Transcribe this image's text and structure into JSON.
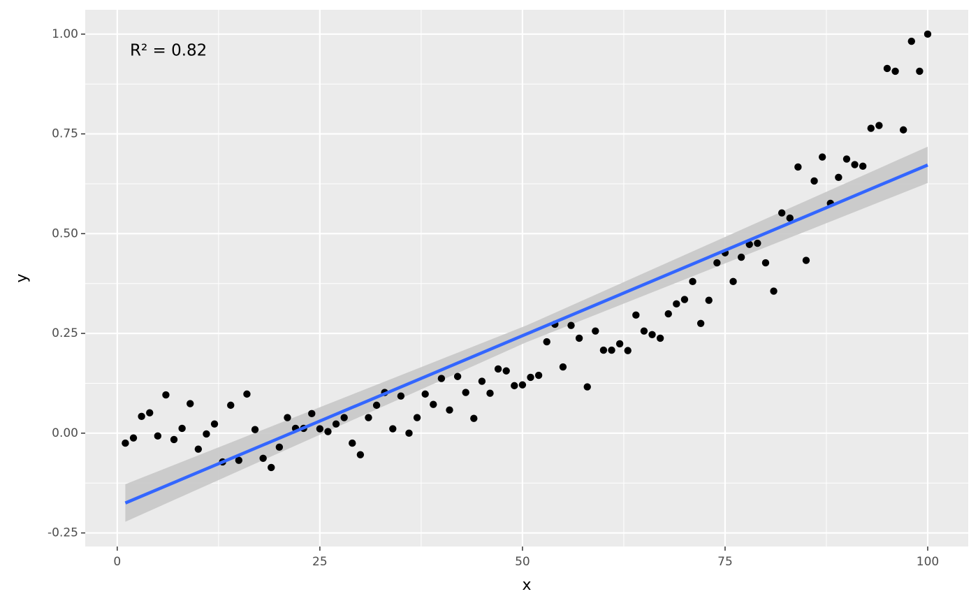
{
  "chart_data": {
    "type": "scatter",
    "x_label": "x",
    "y_label": "y",
    "annotation": "R² = 0.82",
    "xlim": [
      -3.95,
      105
    ],
    "ylim": [
      -0.284,
      1.061
    ],
    "xticks": [
      0,
      25,
      50,
      75,
      100
    ],
    "yticks": [
      -0.25,
      {
        "value": 0,
        "label": "0.00"
      },
      0.25,
      {
        "value": 0.5,
        "label": "0.50"
      },
      0.75,
      {
        "value": 1,
        "label": "1.00"
      }
    ],
    "xminor": [
      12.5,
      37.5,
      62.5,
      87.5
    ],
    "yminor": [
      -0.125,
      0.125,
      0.375,
      0.625,
      0.875
    ],
    "grid": true,
    "point_color": "#000000",
    "x": [
      1,
      2,
      3,
      4,
      5,
      6,
      7,
      8,
      9,
      10,
      11,
      12,
      13,
      14,
      15,
      16,
      17,
      18,
      19,
      20,
      21,
      22,
      23,
      24,
      25,
      26,
      27,
      28,
      29,
      30,
      31,
      32,
      33,
      34,
      35,
      36,
      37,
      38,
      39,
      40,
      41,
      42,
      43,
      44,
      45,
      46,
      47,
      48,
      49,
      50,
      51,
      52,
      53,
      54,
      55,
      56,
      57,
      58,
      59,
      60,
      61,
      62,
      63,
      64,
      65,
      66,
      67,
      68,
      69,
      70,
      71,
      72,
      73,
      74,
      75,
      76,
      77,
      78,
      79,
      80,
      81,
      82,
      83,
      84,
      85,
      86,
      87,
      88,
      89,
      90,
      91,
      92,
      93,
      94,
      95,
      96,
      97,
      98,
      99,
      100
    ],
    "values": [
      -0.025,
      -0.012,
      0.042,
      0.051,
      -0.007,
      0.096,
      -0.016,
      0.012,
      0.074,
      -0.04,
      -0.002,
      0.023,
      -0.072,
      0.07,
      -0.068,
      0.098,
      0.009,
      -0.063,
      -0.086,
      -0.035,
      0.039,
      0.012,
      0.012,
      0.049,
      0.011,
      0.004,
      0.023,
      0.039,
      -0.025,
      -0.054,
      0.039,
      0.07,
      0.102,
      0.011,
      0.093,
      0.0,
      0.039,
      0.098,
      0.072,
      0.137,
      0.058,
      0.142,
      0.102,
      0.037,
      0.13,
      0.1,
      0.161,
      0.156,
      0.119,
      0.121,
      0.14,
      0.145,
      0.229,
      0.273,
      0.166,
      0.27,
      0.238,
      0.116,
      0.256,
      0.208,
      0.208,
      0.224,
      0.207,
      0.296,
      0.256,
      0.247,
      0.238,
      0.299,
      0.324,
      0.335,
      0.38,
      0.275,
      0.333,
      0.427,
      0.452,
      0.38,
      0.441,
      0.473,
      0.476,
      0.427,
      0.356,
      0.552,
      0.539,
      0.667,
      0.433,
      0.632,
      0.692,
      0.576,
      0.641,
      0.687,
      0.673,
      0.669,
      0.764,
      0.771,
      0.914,
      0.907,
      0.76,
      0.982,
      0.907,
      1.0
    ],
    "fit": {
      "color": "#3366FF",
      "band_color": "#c8c8c8",
      "x": [
        1,
        50.5,
        100
      ],
      "y": [
        -0.175,
        0.2485,
        0.672
      ],
      "ymin": [
        -0.222,
        0.228,
        0.627
      ],
      "ymax": [
        -0.128,
        0.27,
        0.718
      ]
    }
  }
}
